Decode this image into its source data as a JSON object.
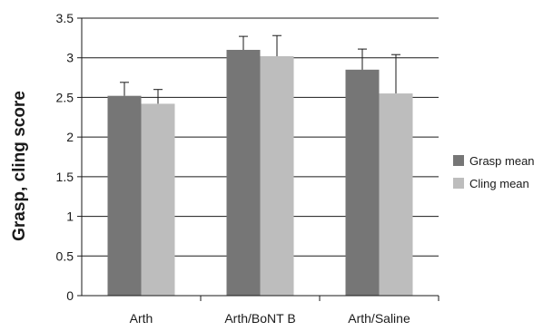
{
  "chart_data": {
    "type": "bar",
    "title": "",
    "xlabel": "",
    "ylabel": "Grasp, cling score",
    "ylim": [
      0,
      3.5
    ],
    "yticks": [
      0,
      0.5,
      1,
      1.5,
      2,
      2.5,
      3,
      3.5
    ],
    "ytick_labels": [
      "0",
      "0.5",
      "1",
      "1.5",
      "2",
      "2.5",
      "3",
      "3.5"
    ],
    "grid": "horizontal",
    "legend_position": "right",
    "categories": [
      "Arth",
      "Arth/BoNT B",
      "Arth/Saline"
    ],
    "series": [
      {
        "name": "Grasp mean",
        "color": "#767676",
        "values": [
          2.52,
          3.1,
          2.85
        ],
        "errors": [
          0.17,
          0.17,
          0.26
        ]
      },
      {
        "name": "Cling mean",
        "color": "#bdbdbd",
        "values": [
          2.42,
          3.02,
          2.55
        ],
        "errors": [
          0.18,
          0.26,
          0.49
        ]
      }
    ]
  }
}
